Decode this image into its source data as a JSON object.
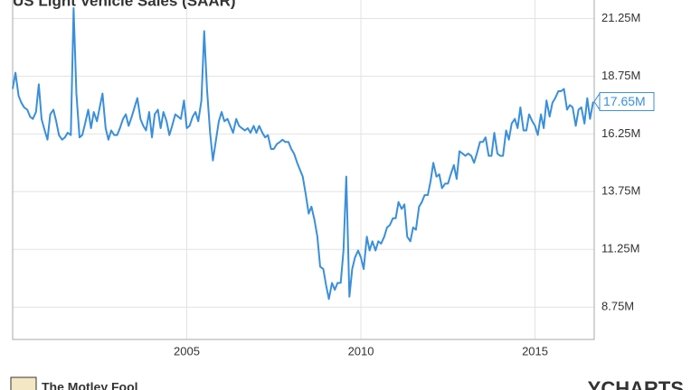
{
  "chart_data": {
    "type": "line",
    "title": "US Light Vehicle Sales (SAAR)",
    "x": [
      2000,
      2000.08,
      2000.17,
      2000.25,
      2000.33,
      2000.42,
      2000.5,
      2000.58,
      2000.67,
      2000.75,
      2000.83,
      2000.92,
      2001,
      2001.08,
      2001.17,
      2001.25,
      2001.33,
      2001.42,
      2001.5,
      2001.58,
      2001.67,
      2001.75,
      2001.83,
      2001.92,
      2002,
      2002.08,
      2002.17,
      2002.25,
      2002.33,
      2002.42,
      2002.5,
      2002.58,
      2002.67,
      2002.75,
      2002.83,
      2002.92,
      2003,
      2003.08,
      2003.17,
      2003.25,
      2003.33,
      2003.42,
      2003.5,
      2003.58,
      2003.67,
      2003.75,
      2003.83,
      2003.92,
      2004,
      2004.08,
      2004.17,
      2004.25,
      2004.33,
      2004.42,
      2004.5,
      2004.58,
      2004.67,
      2004.75,
      2004.83,
      2004.92,
      2005,
      2005.08,
      2005.17,
      2005.25,
      2005.33,
      2005.42,
      2005.5,
      2005.58,
      2005.67,
      2005.75,
      2005.83,
      2005.92,
      2006,
      2006.08,
      2006.17,
      2006.25,
      2006.33,
      2006.42,
      2006.5,
      2006.58,
      2006.67,
      2006.75,
      2006.83,
      2006.92,
      2007,
      2007.08,
      2007.17,
      2007.25,
      2007.33,
      2007.42,
      2007.5,
      2007.58,
      2007.67,
      2007.75,
      2007.83,
      2007.92,
      2008,
      2008.08,
      2008.17,
      2008.25,
      2008.33,
      2008.42,
      2008.5,
      2008.58,
      2008.67,
      2008.75,
      2008.83,
      2008.92,
      2009,
      2009.08,
      2009.17,
      2009.25,
      2009.33,
      2009.42,
      2009.5,
      2009.58,
      2009.67,
      2009.75,
      2009.83,
      2009.92,
      2010,
      2010.08,
      2010.17,
      2010.25,
      2010.33,
      2010.42,
      2010.5,
      2010.58,
      2010.67,
      2010.75,
      2010.83,
      2010.92,
      2011,
      2011.08,
      2011.17,
      2011.25,
      2011.33,
      2011.42,
      2011.5,
      2011.58,
      2011.67,
      2011.75,
      2011.83,
      2011.92,
      2012,
      2012.08,
      2012.17,
      2012.25,
      2012.33,
      2012.42,
      2012.5,
      2012.58,
      2012.67,
      2012.75,
      2012.83,
      2012.92,
      2013,
      2013.08,
      2013.17,
      2013.25,
      2013.33,
      2013.42,
      2013.5,
      2013.58,
      2013.67,
      2013.75,
      2013.83,
      2013.92,
      2014,
      2014.08,
      2014.17,
      2014.25,
      2014.33,
      2014.42,
      2014.5,
      2014.58,
      2014.67,
      2014.75,
      2014.83,
      2014.92,
      2015,
      2015.08,
      2015.17,
      2015.25,
      2015.33,
      2015.42,
      2015.5,
      2015.58,
      2015.67,
      2015.75,
      2015.83,
      2015.92,
      2016,
      2016.08,
      2016.17,
      2016.25,
      2016.33,
      2016.42,
      2016.5,
      2016.58,
      2016.67
    ],
    "values": [
      18.2,
      18.9,
      17.9,
      17.6,
      17.4,
      17.3,
      17.0,
      16.9,
      17.2,
      18.4,
      16.9,
      16.4,
      16.0,
      17.1,
      17.3,
      16.8,
      16.2,
      16.0,
      16.1,
      16.3,
      16.2,
      21.7,
      18.0,
      16.1,
      16.2,
      16.7,
      17.3,
      16.5,
      17.2,
      16.8,
      17.4,
      18.0,
      16.5,
      16.0,
      16.4,
      16.2,
      16.2,
      16.5,
      16.9,
      17.1,
      16.6,
      17.0,
      17.4,
      17.8,
      16.9,
      16.6,
      16.4,
      17.2,
      16.1,
      17.1,
      17.3,
      16.5,
      17.2,
      16.8,
      16.2,
      16.6,
      17.1,
      17.0,
      16.9,
      17.7,
      16.5,
      16.6,
      17.0,
      17.2,
      16.8,
      17.7,
      20.7,
      18.2,
      16.3,
      15.1,
      15.9,
      16.8,
      17.2,
      16.8,
      16.9,
      16.6,
      16.3,
      16.9,
      16.6,
      16.5,
      16.4,
      16.5,
      16.3,
      16.6,
      16.3,
      16.6,
      16.3,
      16.1,
      16.2,
      15.6,
      15.6,
      15.8,
      15.9,
      16.0,
      15.9,
      15.9,
      15.6,
      15.4,
      15.0,
      14.7,
      14.4,
      13.6,
      12.8,
      13.1,
      12.5,
      11.8,
      10.5,
      10.4,
      9.7,
      9.1,
      9.8,
      9.5,
      9.8,
      9.8,
      11.2,
      14.4,
      9.2,
      10.4,
      10.9,
      11.2,
      10.9,
      10.4,
      11.8,
      11.2,
      11.6,
      11.2,
      11.6,
      11.5,
      11.8,
      12.2,
      12.3,
      12.6,
      12.6,
      13.3,
      13.0,
      13.2,
      11.8,
      11.6,
      12.2,
      12.1,
      13.1,
      13.3,
      13.6,
      13.6,
      14.2,
      15.0,
      14.4,
      14.5,
      13.9,
      14.1,
      14.1,
      14.5,
      14.9,
      14.3,
      15.5,
      15.4,
      15.3,
      15.4,
      15.3,
      15.0,
      15.4,
      15.9,
      15.9,
      16.1,
      15.3,
      15.3,
      16.3,
      15.4,
      15.3,
      15.3,
      16.4,
      16.0,
      16.7,
      16.9,
      16.5,
      17.4,
      16.4,
      16.4,
      17.1,
      16.8,
      16.6,
      16.2,
      17.1,
      16.5,
      17.7,
      17.0,
      17.6,
      17.8,
      18.1,
      18.1,
      18.2,
      17.3,
      17.5,
      17.4,
      16.6,
      17.3,
      17.4,
      16.7,
      17.8,
      16.9,
      17.65
    ],
    "end_label": "17.65M",
    "color": "#3b8fd9",
    "xlim": [
      2000,
      2016.7
    ],
    "xticks": [
      2005,
      2010,
      2015
    ],
    "ylim": [
      7.35,
      22.05
    ],
    "yticks": [
      {
        "value": 8.75,
        "label": "8.75M"
      },
      {
        "value": 11.25,
        "label": "11.25M"
      },
      {
        "value": 13.75,
        "label": "13.75M"
      },
      {
        "value": 16.25,
        "label": "16.25M"
      },
      {
        "value": 18.75,
        "label": "18.75M"
      },
      {
        "value": 21.25,
        "label": "21.25M"
      }
    ],
    "grid": true,
    "source_left": "The Motley Fool",
    "source_right": "YCHARTS"
  }
}
